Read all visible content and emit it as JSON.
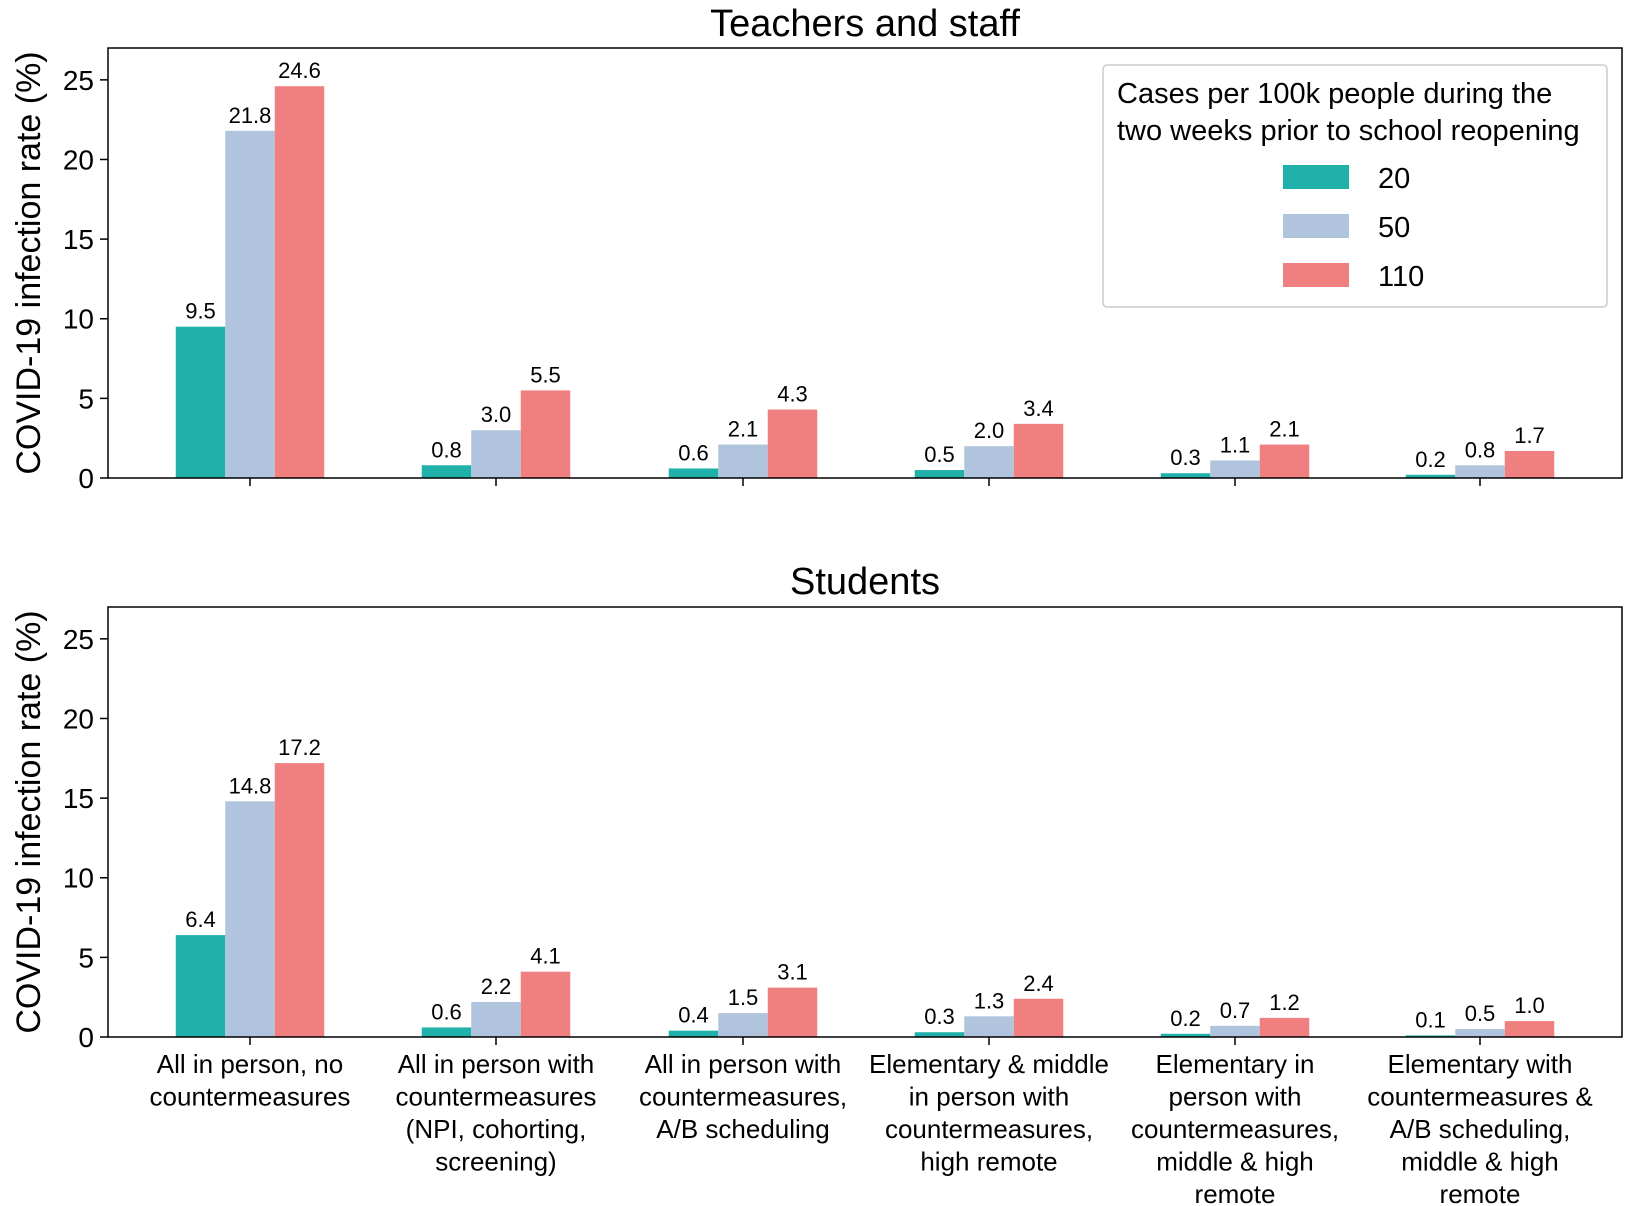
{
  "colors": {
    "s20": "#20b2aa",
    "s50": "#b0c4de",
    "s110": "#f08080"
  },
  "chart_data": [
    {
      "type": "bar",
      "title": "Teachers and staff",
      "ylabel": "COVID-19 infection rate (%)",
      "ylim": [
        0,
        27
      ],
      "yticks": [
        0,
        5,
        10,
        15,
        20,
        25
      ],
      "categories": [
        [
          "All in person, no",
          "countermeasures"
        ],
        [
          "All in person with",
          "countermeasures",
          "(NPI, cohorting,",
          "screening)"
        ],
        [
          "All in person with",
          "countermeasures,",
          "A/B scheduling"
        ],
        [
          "Elementary & middle",
          "in person with",
          "countermeasures,",
          "high remote"
        ],
        [
          "Elementary in",
          "person with",
          "countermeasures,",
          "middle & high",
          "remote"
        ],
        [
          "Elementary with",
          "countermeasures &",
          "A/B scheduling,",
          "middle & high",
          "remote"
        ]
      ],
      "series": [
        {
          "name": "20",
          "color_key": "s20",
          "values": [
            9.5,
            0.8,
            0.6,
            0.5,
            0.3,
            0.2
          ],
          "labels": [
            "9.5",
            "0.8",
            "0.6",
            "0.5",
            "0.3",
            "0.2"
          ]
        },
        {
          "name": "50",
          "color_key": "s50",
          "values": [
            21.8,
            3.0,
            2.1,
            2.0,
            1.1,
            0.8
          ],
          "labels": [
            "21.8",
            "3.0",
            "2.1",
            "2.0",
            "1.1",
            "0.8"
          ]
        },
        {
          "name": "110",
          "color_key": "s110",
          "values": [
            24.6,
            5.5,
            4.3,
            3.4,
            2.1,
            1.7
          ],
          "labels": [
            "24.6",
            "5.5",
            "4.3",
            "3.4",
            "2.1",
            "1.7"
          ]
        }
      ],
      "legend": {
        "title": [
          "Cases per 100k people during the",
          "two weeks prior to school reopening"
        ],
        "placement": "top-right"
      },
      "grid": false
    },
    {
      "type": "bar",
      "title": "Students",
      "ylabel": "COVID-19 infection rate (%)",
      "ylim": [
        0,
        27
      ],
      "yticks": [
        0,
        5,
        10,
        15,
        20,
        25
      ],
      "categories": [
        [
          "All in person, no",
          "countermeasures"
        ],
        [
          "All in person with",
          "countermeasures",
          "(NPI, cohorting,",
          "screening)"
        ],
        [
          "All in person with",
          "countermeasures,",
          "A/B scheduling"
        ],
        [
          "Elementary & middle",
          "in person with",
          "countermeasures,",
          "high remote"
        ],
        [
          "Elementary in",
          "person with",
          "countermeasures,",
          "middle & high",
          "remote"
        ],
        [
          "Elementary with",
          "countermeasures &",
          "A/B scheduling,",
          "middle & high",
          "remote"
        ]
      ],
      "series": [
        {
          "name": "20",
          "color_key": "s20",
          "values": [
            6.4,
            0.6,
            0.4,
            0.3,
            0.2,
            0.1
          ],
          "labels": [
            "6.4",
            "0.6",
            "0.4",
            "0.3",
            "0.2",
            "0.1"
          ]
        },
        {
          "name": "50",
          "color_key": "s50",
          "values": [
            14.8,
            2.2,
            1.5,
            1.3,
            0.7,
            0.5
          ],
          "labels": [
            "14.8",
            "2.2",
            "1.5",
            "1.3",
            "0.7",
            "0.5"
          ]
        },
        {
          "name": "110",
          "color_key": "s110",
          "values": [
            17.2,
            4.1,
            3.1,
            2.4,
            1.2,
            1.0
          ],
          "labels": [
            "17.2",
            "4.1",
            "3.1",
            "2.4",
            "1.2",
            "1.0"
          ]
        }
      ],
      "grid": false
    }
  ]
}
